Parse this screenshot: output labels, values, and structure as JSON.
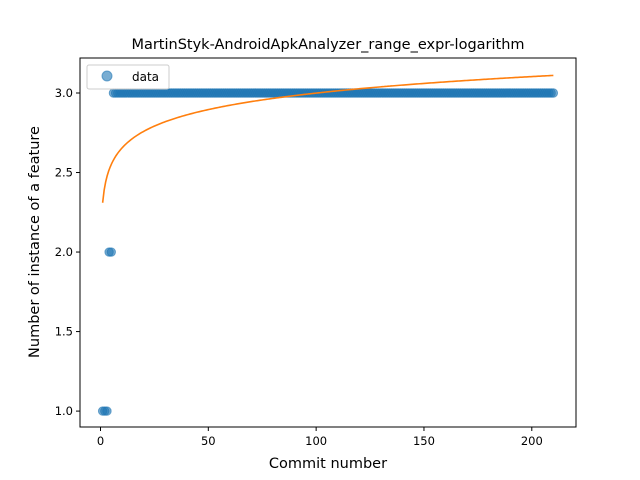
{
  "chart_data": {
    "type": "scatter",
    "title": "MartinStyk-AndroidApkAnalyzer_range_expr-logarithm",
    "xlabel": "Commit number",
    "ylabel": "Number of instance of a feature",
    "xlim": [
      -9.5,
      220.5
    ],
    "ylim": [
      0.9,
      3.22
    ],
    "xticks": [
      0,
      50,
      100,
      150,
      200
    ],
    "yticks": [
      1.0,
      1.5,
      2.0,
      2.5,
      3.0
    ],
    "ytick_labels": [
      "1.0",
      "1.5",
      "2.0",
      "2.5",
      "3.0"
    ],
    "grid": false,
    "legend": {
      "placement": "upper-left",
      "entries": [
        "data"
      ]
    },
    "series": [
      {
        "name": "data",
        "kind": "points",
        "color": "#1f77b4",
        "segments": [
          {
            "x_from": 1,
            "x_to": 3,
            "y": 1
          },
          {
            "x_from": 4,
            "x_to": 5,
            "y": 2
          },
          {
            "x_from": 6,
            "x_to": 210,
            "y": 3
          }
        ]
      },
      {
        "kind": "fit-curve",
        "color": "#ff7f0e",
        "model": "a + b*ln(x)",
        "a": 2.31,
        "b": 0.1497,
        "x_range": [
          1,
          210
        ]
      }
    ]
  }
}
